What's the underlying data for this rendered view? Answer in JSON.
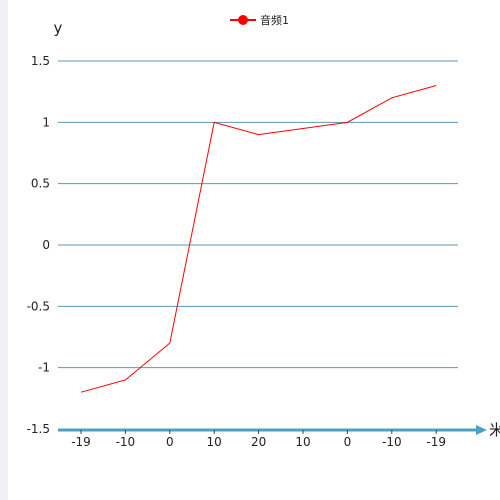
{
  "chart_data": {
    "type": "line",
    "title": "",
    "xlabel": "米",
    "ylabel": "y",
    "categories": [
      "-19",
      "-10",
      "0",
      "10",
      "20",
      "10",
      "0",
      "-10",
      "-19"
    ],
    "series": [
      {
        "name": "音频1",
        "values": [
          -1.2,
          -1.1,
          -0.8,
          1.0,
          0.9,
          0.95,
          1.0,
          1.2,
          1.3
        ]
      }
    ],
    "ylim": [
      -1.5,
      1.5
    ],
    "y_ticks": [
      "1.5",
      "1",
      "0.5",
      "0",
      "-0.5",
      "-1",
      "-1.5"
    ],
    "grid": true,
    "legend": "top-center",
    "colors": {
      "series": "#ff0000",
      "grid": "#5b9ab3",
      "x_axis": "#4aa1c2"
    }
  }
}
